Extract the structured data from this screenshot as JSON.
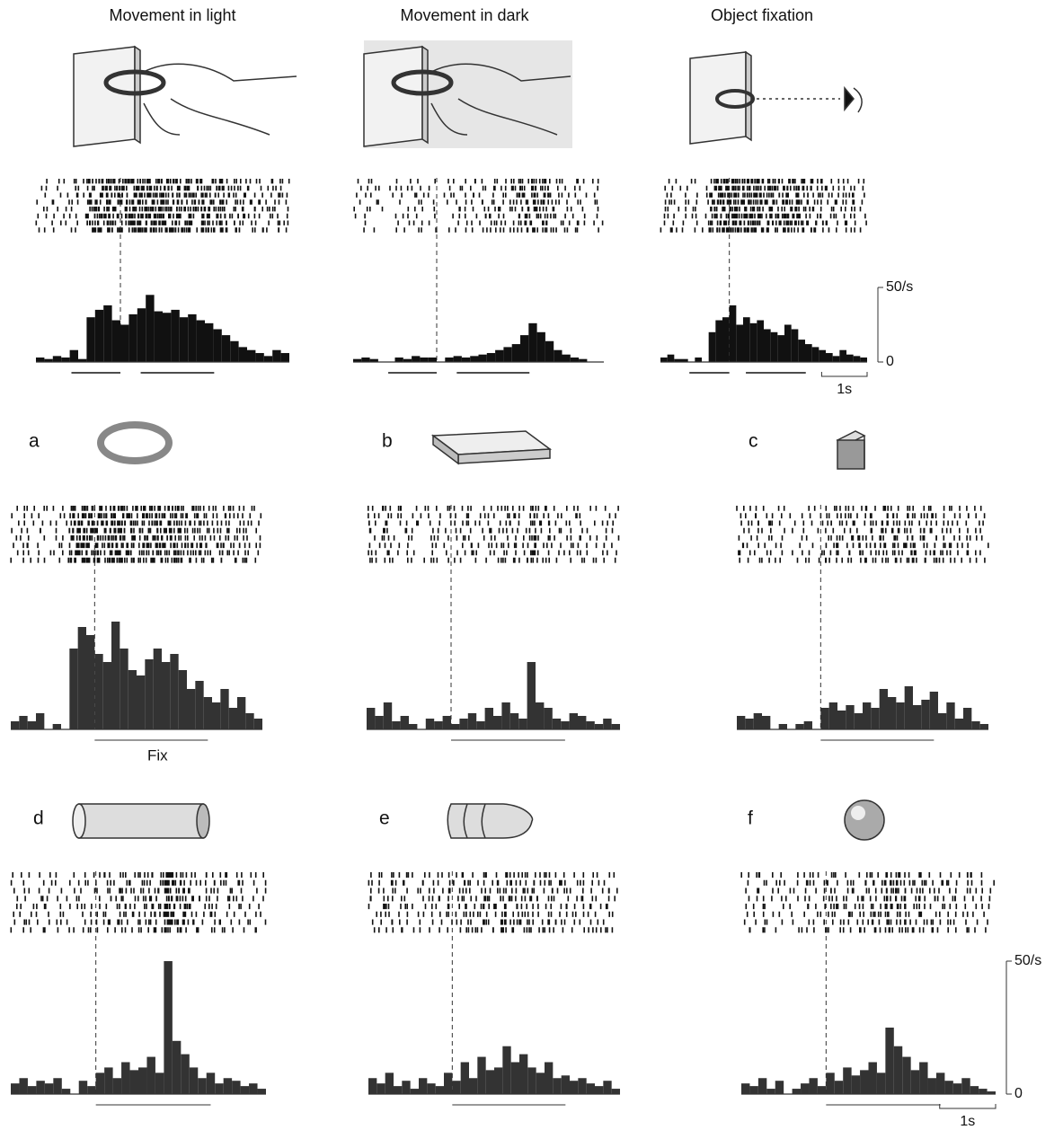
{
  "chart_data": [
    {
      "type": "histogram",
      "title": "Movement in light",
      "color": "#111111",
      "xlim": [
        -1.5,
        3.0
      ],
      "ylim": [
        0,
        50
      ],
      "bins": [
        -1.5,
        -1.35,
        -1.2,
        -1.05,
        -0.9,
        -0.75,
        -0.6,
        -0.45,
        -0.3,
        -0.15,
        0,
        0.15,
        0.3,
        0.45,
        0.6,
        0.75,
        0.9,
        1.05,
        1.2,
        1.35,
        1.5,
        1.65,
        1.8,
        1.95,
        2.1,
        2.25,
        2.4,
        2.55,
        2.7,
        2.85,
        3.0
      ],
      "values": [
        3,
        2,
        4,
        3,
        8,
        2,
        30,
        35,
        38,
        28,
        25,
        32,
        36,
        45,
        34,
        33,
        35,
        30,
        32,
        28,
        26,
        22,
        18,
        14,
        10,
        8,
        6,
        4,
        8,
        6
      ]
    },
    {
      "type": "histogram",
      "title": "Movement in dark",
      "color": "#111111",
      "xlim": [
        -1.5,
        3.0
      ],
      "ylim": [
        0,
        50
      ],
      "bins": [
        -1.5,
        -1.35,
        -1.2,
        -1.05,
        -0.9,
        -0.75,
        -0.6,
        -0.45,
        -0.3,
        -0.15,
        0,
        0.15,
        0.3,
        0.45,
        0.6,
        0.75,
        0.9,
        1.05,
        1.2,
        1.35,
        1.5,
        1.65,
        1.8,
        1.95,
        2.1,
        2.25,
        2.4,
        2.55,
        2.7,
        2.85,
        3.0
      ],
      "values": [
        2,
        3,
        2,
        0,
        0,
        3,
        2,
        4,
        3,
        3,
        0,
        3,
        4,
        3,
        4,
        5,
        6,
        8,
        10,
        12,
        18,
        26,
        20,
        14,
        8,
        5,
        3,
        2,
        0,
        0
      ]
    },
    {
      "type": "histogram",
      "title": "Object fixation",
      "color": "#111111",
      "xlim": [
        -1.5,
        3.0
      ],
      "ylim": [
        0,
        50
      ],
      "yticks": [
        0,
        {
          "value": 50,
          "label": "50/s"
        }
      ],
      "scale_label": "1s",
      "bins": [
        -1.5,
        -1.35,
        -1.2,
        -1.05,
        -0.9,
        -0.75,
        -0.6,
        -0.45,
        -0.3,
        -0.15,
        0,
        0.15,
        0.3,
        0.45,
        0.6,
        0.75,
        0.9,
        1.05,
        1.2,
        1.35,
        1.5,
        1.65,
        1.8,
        1.95,
        2.1,
        2.25,
        2.4,
        2.55,
        2.7,
        2.85,
        3.0
      ],
      "values": [
        3,
        5,
        2,
        2,
        0,
        3,
        0,
        20,
        28,
        30,
        38,
        25,
        30,
        26,
        28,
        22,
        20,
        18,
        25,
        22,
        15,
        12,
        10,
        8,
        6,
        4,
        8,
        5,
        4,
        3
      ]
    },
    {
      "type": "histogram",
      "title": "a",
      "annotation": "Fix",
      "color": "#333333",
      "xlim": [
        -1.5,
        3.0
      ],
      "ylim": [
        0,
        50
      ],
      "bins": [
        -1.5,
        -1.35,
        -1.2,
        -1.05,
        -0.9,
        -0.75,
        -0.6,
        -0.45,
        -0.3,
        -0.15,
        0,
        0.15,
        0.3,
        0.45,
        0.6,
        0.75,
        0.9,
        1.05,
        1.2,
        1.35,
        1.5,
        1.65,
        1.8,
        1.95,
        2.1,
        2.25,
        2.4,
        2.55,
        2.7,
        2.85,
        3.0
      ],
      "values": [
        3,
        5,
        3,
        6,
        0,
        2,
        0,
        30,
        38,
        35,
        28,
        25,
        40,
        30,
        22,
        20,
        26,
        30,
        25,
        28,
        22,
        15,
        18,
        12,
        10,
        15,
        8,
        12,
        6,
        4
      ]
    },
    {
      "type": "histogram",
      "title": "b",
      "color": "#333333",
      "xlim": [
        -1.5,
        3.0
      ],
      "ylim": [
        0,
        50
      ],
      "bins": [
        -1.5,
        -1.35,
        -1.2,
        -1.05,
        -0.9,
        -0.75,
        -0.6,
        -0.45,
        -0.3,
        -0.15,
        0,
        0.15,
        0.3,
        0.45,
        0.6,
        0.75,
        0.9,
        1.05,
        1.2,
        1.35,
        1.5,
        1.65,
        1.8,
        1.95,
        2.1,
        2.25,
        2.4,
        2.55,
        2.7,
        2.85,
        3.0
      ],
      "values": [
        8,
        5,
        10,
        3,
        5,
        2,
        0,
        4,
        3,
        5,
        2,
        4,
        6,
        3,
        8,
        5,
        10,
        6,
        4,
        25,
        10,
        8,
        4,
        3,
        6,
        5,
        3,
        2,
        4,
        2
      ]
    },
    {
      "type": "histogram",
      "title": "c",
      "color": "#333333",
      "xlim": [
        -1.5,
        3.0
      ],
      "ylim": [
        0,
        50
      ],
      "bins": [
        -1.5,
        -1.35,
        -1.2,
        -1.05,
        -0.9,
        -0.75,
        -0.6,
        -0.45,
        -0.3,
        -0.15,
        0,
        0.15,
        0.3,
        0.45,
        0.6,
        0.75,
        0.9,
        1.05,
        1.2,
        1.35,
        1.5,
        1.65,
        1.8,
        1.95,
        2.1,
        2.25,
        2.4,
        2.55,
        2.7,
        2.85,
        3.0
      ],
      "values": [
        5,
        4,
        6,
        5,
        0,
        2,
        0,
        2,
        3,
        0,
        8,
        10,
        7,
        9,
        6,
        10,
        8,
        15,
        12,
        10,
        16,
        9,
        11,
        14,
        6,
        10,
        4,
        8,
        3,
        2
      ]
    },
    {
      "type": "histogram",
      "title": "d",
      "color": "#333333",
      "xlim": [
        -1.5,
        3.0
      ],
      "ylim": [
        0,
        50
      ],
      "bins": [
        -1.5,
        -1.35,
        -1.2,
        -1.05,
        -0.9,
        -0.75,
        -0.6,
        -0.45,
        -0.3,
        -0.15,
        0,
        0.15,
        0.3,
        0.45,
        0.6,
        0.75,
        0.9,
        1.05,
        1.2,
        1.35,
        1.5,
        1.65,
        1.8,
        1.95,
        2.1,
        2.25,
        2.4,
        2.55,
        2.7,
        2.85,
        3.0
      ],
      "values": [
        4,
        6,
        3,
        5,
        4,
        6,
        2,
        0,
        5,
        3,
        8,
        10,
        6,
        12,
        9,
        10,
        14,
        8,
        50,
        20,
        15,
        10,
        6,
        8,
        4,
        6,
        5,
        3,
        4,
        2
      ]
    },
    {
      "type": "histogram",
      "title": "e",
      "color": "#333333",
      "xlim": [
        -1.5,
        3.0
      ],
      "ylim": [
        0,
        50
      ],
      "bins": [
        -1.5,
        -1.35,
        -1.2,
        -1.05,
        -0.9,
        -0.75,
        -0.6,
        -0.45,
        -0.3,
        -0.15,
        0,
        0.15,
        0.3,
        0.45,
        0.6,
        0.75,
        0.9,
        1.05,
        1.2,
        1.35,
        1.5,
        1.65,
        1.8,
        1.95,
        2.1,
        2.25,
        2.4,
        2.55,
        2.7,
        2.85,
        3.0
      ],
      "values": [
        6,
        4,
        8,
        3,
        5,
        2,
        6,
        4,
        3,
        8,
        5,
        12,
        6,
        14,
        9,
        10,
        18,
        12,
        15,
        10,
        8,
        12,
        6,
        7,
        5,
        6,
        4,
        3,
        5,
        2
      ]
    },
    {
      "type": "histogram",
      "title": "f",
      "color": "#333333",
      "xlim": [
        -1.5,
        3.0
      ],
      "ylim": [
        0,
        50
      ],
      "yticks": [
        0,
        {
          "value": 50,
          "label": "50/s"
        }
      ],
      "scale_label": "1s",
      "bins": [
        -1.5,
        -1.35,
        -1.2,
        -1.05,
        -0.9,
        -0.75,
        -0.6,
        -0.45,
        -0.3,
        -0.15,
        0,
        0.15,
        0.3,
        0.45,
        0.6,
        0.75,
        0.9,
        1.05,
        1.2,
        1.35,
        1.5,
        1.65,
        1.8,
        1.95,
        2.1,
        2.25,
        2.4,
        2.55,
        2.7,
        2.85,
        3.0
      ],
      "values": [
        4,
        3,
        6,
        2,
        5,
        0,
        2,
        4,
        6,
        3,
        8,
        5,
        10,
        7,
        9,
        12,
        8,
        25,
        18,
        14,
        9,
        12,
        6,
        8,
        5,
        4,
        6,
        3,
        2,
        1
      ]
    }
  ]
}
